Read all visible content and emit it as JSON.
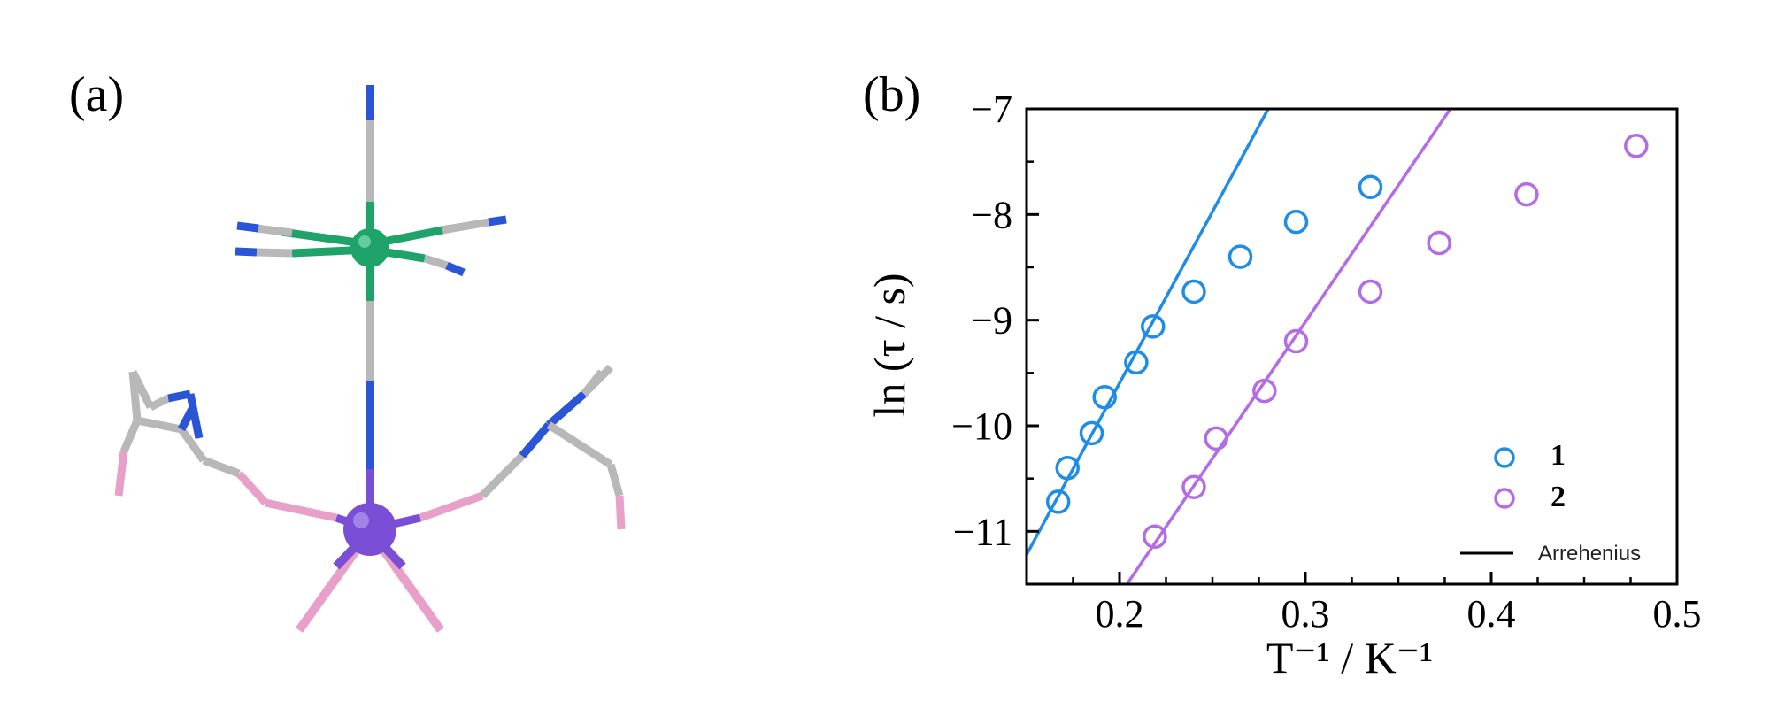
{
  "panels": {
    "a_label": "(a)",
    "b_label": "(b)"
  },
  "colors": {
    "series1": "#1f8ce6",
    "series2": "#b46be6",
    "metal_top": "#1fa36b",
    "metal_bottom": "#7a4fd6",
    "nitrogen": "#2a55d6",
    "carbon": "#b8b8b8",
    "oxygen": "#e8a0c8"
  },
  "molecule_icon": "coordination-complex-structure",
  "chart_data": {
    "type": "scatter",
    "xlabel": "T⁻¹ / K⁻¹",
    "ylabel": "ln (τ / s)",
    "xlim": [
      0.15,
      0.5
    ],
    "ylim": [
      -11.5,
      -7
    ],
    "xticks": [
      0.2,
      0.3,
      0.4,
      0.5
    ],
    "xtick_labels": [
      "0.2",
      "0.3",
      "0.4",
      "0.5"
    ],
    "yticks": [
      -7,
      -8,
      -9,
      -10,
      -11
    ],
    "ytick_labels": [
      "−7",
      "−8",
      "−9",
      "−10",
      "−11"
    ],
    "legend": {
      "placement": "bottom-right",
      "entries": [
        "1",
        "2"
      ],
      "line_entry": "Arrehenius"
    },
    "series": [
      {
        "name": "1",
        "color": "#1f8ce6",
        "points": [
          [
            0.167,
            -10.72
          ],
          [
            0.172,
            -10.4
          ],
          [
            0.185,
            -10.07
          ],
          [
            0.192,
            -9.73
          ],
          [
            0.209,
            -9.4
          ],
          [
            0.218,
            -9.06
          ],
          [
            0.24,
            -8.73
          ],
          [
            0.265,
            -8.4
          ],
          [
            0.295,
            -8.07
          ],
          [
            0.335,
            -7.74
          ]
        ],
        "fit": [
          [
            0.15,
            -11.22
          ],
          [
            0.28,
            -7.0
          ]
        ]
      },
      {
        "name": "2",
        "color": "#b46be6",
        "points": [
          [
            0.219,
            -11.05
          ],
          [
            0.24,
            -10.58
          ],
          [
            0.252,
            -10.12
          ],
          [
            0.278,
            -9.67
          ],
          [
            0.295,
            -9.2
          ],
          [
            0.335,
            -8.73
          ],
          [
            0.372,
            -8.27
          ],
          [
            0.419,
            -7.81
          ],
          [
            0.478,
            -7.35
          ]
        ],
        "fit": [
          [
            0.204,
            -11.5
          ],
          [
            0.378,
            -7.0
          ]
        ]
      }
    ]
  }
}
